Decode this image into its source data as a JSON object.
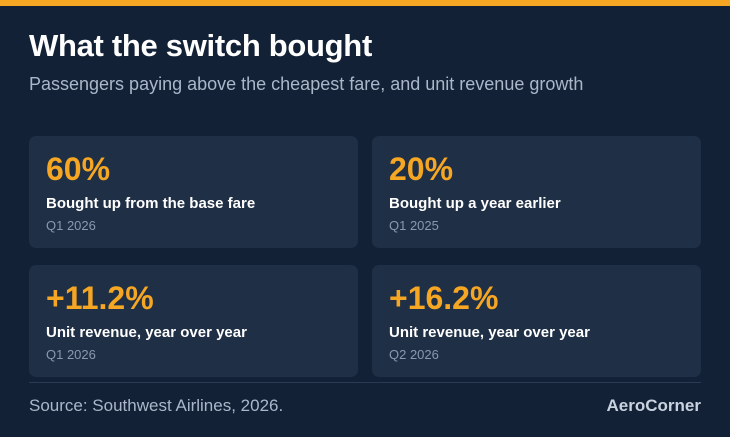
{
  "colors": {
    "background": "#132136",
    "accent": "#F5A623",
    "card": "#1F2F45",
    "title": "#FFFFFF",
    "muted": "#A9B7C9"
  },
  "header": {
    "title": "What the switch bought",
    "subtitle": "Passengers paying above the cheapest fare, and unit revenue growth"
  },
  "cards": [
    {
      "value": "60%",
      "label": "Bought up from the base fare",
      "period": "Q1 2026"
    },
    {
      "value": "20%",
      "label": "Bought up a year earlier",
      "period": "Q1 2025"
    },
    {
      "value": "+11.2%",
      "label": "Unit revenue, year over year",
      "period": "Q1 2026"
    },
    {
      "value": "+16.2%",
      "label": "Unit revenue, year over year",
      "period": "Q2 2026"
    }
  ],
  "footer": {
    "source": "Source: Southwest Airlines, 2026.",
    "brand": "AeroCorner"
  }
}
